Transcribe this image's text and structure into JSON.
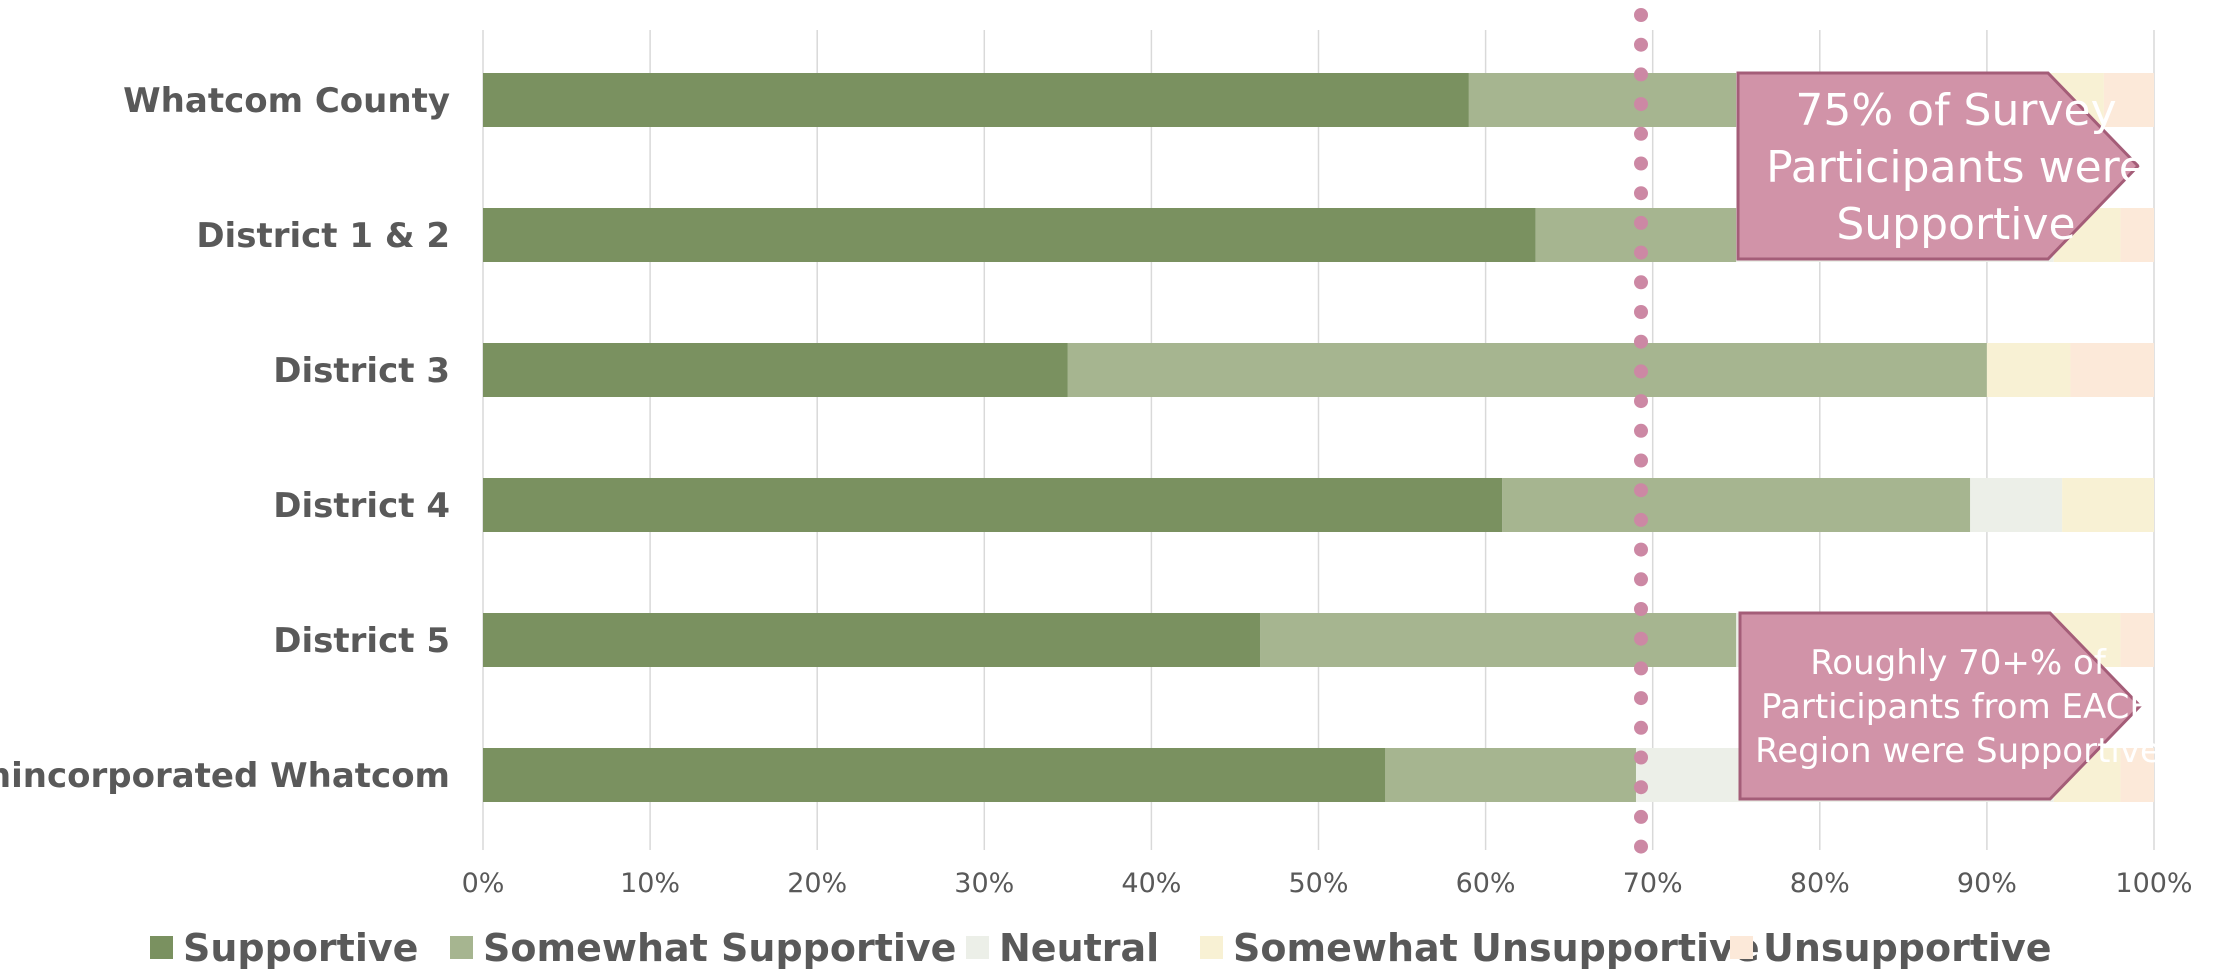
{
  "chart_data": {
    "type": "bar",
    "orientation": "horizontal",
    "stacked": "percent",
    "categories": [
      "Whatcom County",
      "District 1 & 2",
      "District 3",
      "District 4",
      "District 5",
      "Unincorporated Whatcom"
    ],
    "series": [
      {
        "name": "Supportive",
        "color": "#7a9160",
        "values": [
          59,
          63,
          35,
          61,
          46.5,
          54
        ]
      },
      {
        "name": "Somewhat Supportive",
        "color": "#a6b590",
        "values": [
          16,
          12,
          55,
          28,
          28.5,
          15
        ]
      },
      {
        "name": "Neutral",
        "color": "#ecefe8",
        "values": [
          16,
          19,
          0,
          5.5,
          19,
          25
        ]
      },
      {
        "name": "Somewhat Unsupportive",
        "color": "#f8f1d4",
        "values": [
          6,
          4,
          5,
          5.5,
          4,
          4
        ]
      },
      {
        "name": "Unsupportive",
        "color": "#fce9d9",
        "values": [
          3,
          2,
          5,
          0,
          2,
          2
        ]
      }
    ],
    "x_ticks": [
      "0%",
      "10%",
      "20%",
      "30%",
      "40%",
      "50%",
      "60%",
      "70%",
      "80%",
      "90%",
      "100%"
    ],
    "xlim": [
      0,
      100
    ],
    "grid": true,
    "legend_position": "bottom",
    "reference_line": {
      "value": 69.3,
      "color": "#cc88a4",
      "style": "dotted"
    },
    "annotations": [
      {
        "lines": [
          "75% of Survey",
          "Participants were",
          "Supportive"
        ]
      },
      {
        "lines": [
          "Roughly 70+% of",
          "Participants from EACH",
          "Region were Supportive"
        ]
      }
    ]
  },
  "colors": {
    "callout_fill": "#d193a8",
    "callout_border": "#a45d78",
    "grid": "#d9d9d9",
    "text": "#595959"
  }
}
